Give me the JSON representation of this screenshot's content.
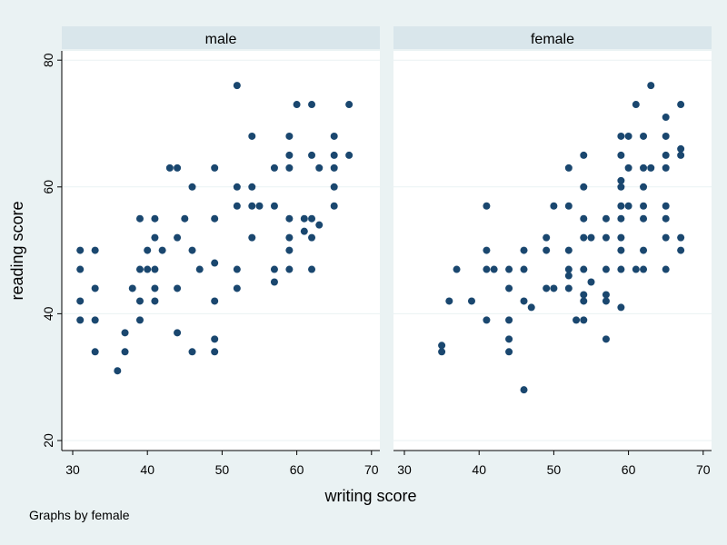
{
  "chart_data": {
    "type": "scatter",
    "xlabel": "writing score",
    "ylabel": "reading score",
    "note": "Graphs by female",
    "xlim": [
      28,
      71
    ],
    "ylim": [
      18,
      82
    ],
    "xticks": [
      30,
      40,
      50,
      60,
      70
    ],
    "yticks": [
      20,
      40,
      60,
      80
    ],
    "grid": "horizontal",
    "marker_color": "#1a476f",
    "panels": [
      {
        "title": "male",
        "points": [
          [
            52,
            76
          ],
          [
            60,
            73
          ],
          [
            62,
            73
          ],
          [
            67,
            73
          ],
          [
            54,
            68
          ],
          [
            59,
            68
          ],
          [
            65,
            68
          ],
          [
            59,
            65
          ],
          [
            62,
            65
          ],
          [
            65,
            65
          ],
          [
            67,
            65
          ],
          [
            43,
            63
          ],
          [
            44,
            63
          ],
          [
            49,
            63
          ],
          [
            57,
            63
          ],
          [
            59,
            63
          ],
          [
            63,
            63
          ],
          [
            65,
            63
          ],
          [
            46,
            60
          ],
          [
            52,
            60
          ],
          [
            54,
            60
          ],
          [
            65,
            60
          ],
          [
            52,
            57
          ],
          [
            54,
            57
          ],
          [
            55,
            57
          ],
          [
            57,
            57
          ],
          [
            65,
            57
          ],
          [
            39,
            55
          ],
          [
            41,
            55
          ],
          [
            45,
            55
          ],
          [
            49,
            55
          ],
          [
            59,
            55
          ],
          [
            61,
            55
          ],
          [
            62,
            55
          ],
          [
            63,
            54
          ],
          [
            61,
            53
          ],
          [
            41,
            52
          ],
          [
            44,
            52
          ],
          [
            54,
            52
          ],
          [
            59,
            52
          ],
          [
            62,
            52
          ],
          [
            31,
            50
          ],
          [
            33,
            50
          ],
          [
            40,
            50
          ],
          [
            42,
            50
          ],
          [
            46,
            50
          ],
          [
            59,
            50
          ],
          [
            49,
            48
          ],
          [
            31,
            47
          ],
          [
            39,
            47
          ],
          [
            40,
            47
          ],
          [
            41,
            47
          ],
          [
            47,
            47
          ],
          [
            52,
            47
          ],
          [
            57,
            47
          ],
          [
            59,
            47
          ],
          [
            62,
            47
          ],
          [
            57,
            45
          ],
          [
            33,
            44
          ],
          [
            38,
            44
          ],
          [
            41,
            44
          ],
          [
            44,
            44
          ],
          [
            52,
            44
          ],
          [
            31,
            42
          ],
          [
            39,
            42
          ],
          [
            41,
            42
          ],
          [
            49,
            42
          ],
          [
            31,
            39
          ],
          [
            33,
            39
          ],
          [
            39,
            39
          ],
          [
            37,
            37
          ],
          [
            44,
            37
          ],
          [
            49,
            36
          ],
          [
            33,
            34
          ],
          [
            37,
            34
          ],
          [
            46,
            34
          ],
          [
            49,
            34
          ],
          [
            36,
            31
          ]
        ]
      },
      {
        "title": "female",
        "points": [
          [
            63,
            76
          ],
          [
            61,
            73
          ],
          [
            67,
            73
          ],
          [
            65,
            71
          ],
          [
            59,
            68
          ],
          [
            60,
            68
          ],
          [
            62,
            68
          ],
          [
            65,
            68
          ],
          [
            67,
            66
          ],
          [
            54,
            65
          ],
          [
            59,
            65
          ],
          [
            65,
            65
          ],
          [
            67,
            65
          ],
          [
            52,
            63
          ],
          [
            60,
            63
          ],
          [
            62,
            63
          ],
          [
            63,
            63
          ],
          [
            65,
            63
          ],
          [
            59,
            61
          ],
          [
            54,
            60
          ],
          [
            59,
            60
          ],
          [
            62,
            60
          ],
          [
            41,
            57
          ],
          [
            50,
            57
          ],
          [
            52,
            57
          ],
          [
            59,
            57
          ],
          [
            60,
            57
          ],
          [
            62,
            57
          ],
          [
            65,
            57
          ],
          [
            54,
            55
          ],
          [
            57,
            55
          ],
          [
            59,
            55
          ],
          [
            62,
            55
          ],
          [
            65,
            55
          ],
          [
            49,
            52
          ],
          [
            54,
            52
          ],
          [
            55,
            52
          ],
          [
            57,
            52
          ],
          [
            59,
            52
          ],
          [
            65,
            52
          ],
          [
            67,
            52
          ],
          [
            41,
            50
          ],
          [
            46,
            50
          ],
          [
            49,
            50
          ],
          [
            52,
            50
          ],
          [
            59,
            50
          ],
          [
            62,
            50
          ],
          [
            67,
            50
          ],
          [
            37,
            47
          ],
          [
            41,
            47
          ],
          [
            42,
            47
          ],
          [
            44,
            47
          ],
          [
            46,
            47
          ],
          [
            52,
            47
          ],
          [
            54,
            47
          ],
          [
            57,
            47
          ],
          [
            59,
            47
          ],
          [
            61,
            47
          ],
          [
            62,
            47
          ],
          [
            65,
            47
          ],
          [
            52,
            46
          ],
          [
            55,
            45
          ],
          [
            44,
            44
          ],
          [
            49,
            44
          ],
          [
            50,
            44
          ],
          [
            52,
            44
          ],
          [
            54,
            43
          ],
          [
            57,
            43
          ],
          [
            36,
            42
          ],
          [
            39,
            42
          ],
          [
            46,
            42
          ],
          [
            54,
            42
          ],
          [
            57,
            42
          ],
          [
            47,
            41
          ],
          [
            59,
            41
          ],
          [
            41,
            39
          ],
          [
            44,
            39
          ],
          [
            53,
            39
          ],
          [
            54,
            39
          ],
          [
            44,
            36
          ],
          [
            57,
            36
          ],
          [
            35,
            35
          ],
          [
            35,
            34
          ],
          [
            44,
            34
          ],
          [
            46,
            28
          ]
        ]
      }
    ]
  }
}
